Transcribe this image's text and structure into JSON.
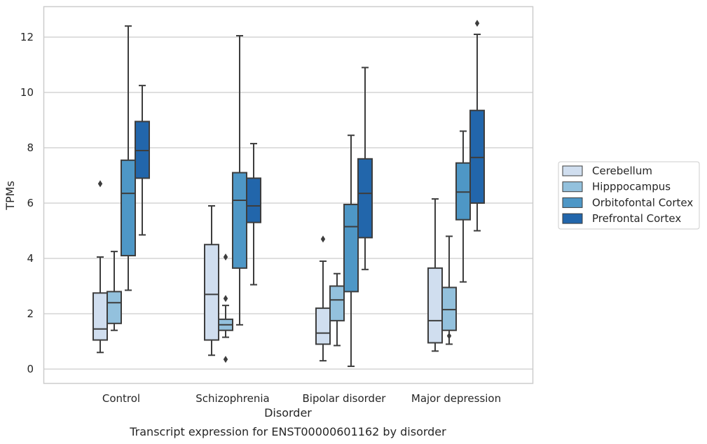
{
  "caption": "Transcript expression for ENST00000601162 by disorder",
  "chart_data": {
    "type": "box",
    "title": "",
    "xlabel": "Disorder",
    "ylabel": "TPMs",
    "ylim": [
      -0.5,
      13.1
    ],
    "yticks": [
      0,
      2,
      4,
      6,
      8,
      10,
      12
    ],
    "grid": "horizontal",
    "legend_position": "right",
    "categories": [
      "Control",
      "Schizophrenia",
      "Bipolar disorder",
      "Major depression"
    ],
    "series": [
      {
        "name": "Cerebellum",
        "color": "#d0deef",
        "boxes": [
          {
            "min": 0.6,
            "q1": 1.05,
            "median": 1.45,
            "q3": 2.75,
            "max": 4.05,
            "outliers": [
              6.7
            ]
          },
          {
            "min": 0.5,
            "q1": 1.05,
            "median": 2.7,
            "q3": 4.5,
            "max": 5.9,
            "outliers": []
          },
          {
            "min": 0.3,
            "q1": 0.9,
            "median": 1.3,
            "q3": 2.2,
            "max": 3.9,
            "outliers": [
              4.7
            ]
          },
          {
            "min": 0.65,
            "q1": 0.95,
            "median": 1.75,
            "q3": 3.65,
            "max": 6.15,
            "outliers": []
          }
        ]
      },
      {
        "name": "Hipppocampus",
        "color": "#93c1dd",
        "boxes": [
          {
            "min": 1.4,
            "q1": 1.65,
            "median": 2.4,
            "q3": 2.8,
            "max": 4.25,
            "outliers": []
          },
          {
            "min": 1.15,
            "q1": 1.4,
            "median": 1.6,
            "q3": 1.8,
            "max": 2.3,
            "outliers": [
              2.55,
              4.05,
              0.35
            ]
          },
          {
            "min": 0.85,
            "q1": 1.75,
            "median": 2.5,
            "q3": 3.0,
            "max": 3.45,
            "outliers": []
          },
          {
            "min": 0.9,
            "q1": 1.4,
            "median": 2.15,
            "q3": 2.95,
            "max": 4.8,
            "outliers": [
              1.2
            ]
          }
        ]
      },
      {
        "name": "Orbitofontal Cortex",
        "color": "#4e97c6",
        "boxes": [
          {
            "min": 2.85,
            "q1": 4.1,
            "median": 6.35,
            "q3": 7.55,
            "max": 12.4,
            "outliers": []
          },
          {
            "min": 1.6,
            "q1": 3.65,
            "median": 6.1,
            "q3": 7.1,
            "max": 12.05,
            "outliers": []
          },
          {
            "min": 0.1,
            "q1": 2.8,
            "median": 5.15,
            "q3": 5.95,
            "max": 8.45,
            "outliers": []
          },
          {
            "min": 3.15,
            "q1": 5.4,
            "median": 6.4,
            "q3": 7.45,
            "max": 8.6,
            "outliers": []
          }
        ]
      },
      {
        "name": "Prefrontal Cortex",
        "color": "#2266ab",
        "boxes": [
          {
            "min": 4.85,
            "q1": 6.9,
            "median": 7.9,
            "q3": 8.95,
            "max": 10.25,
            "outliers": []
          },
          {
            "min": 3.05,
            "q1": 5.3,
            "median": 5.9,
            "q3": 6.9,
            "max": 8.15,
            "outliers": []
          },
          {
            "min": 3.6,
            "q1": 4.75,
            "median": 6.35,
            "q3": 7.6,
            "max": 10.9,
            "outliers": []
          },
          {
            "min": 5.0,
            "q1": 6.0,
            "median": 7.65,
            "q3": 9.35,
            "max": 12.1,
            "outliers": [
              12.5
            ]
          }
        ]
      }
    ]
  }
}
